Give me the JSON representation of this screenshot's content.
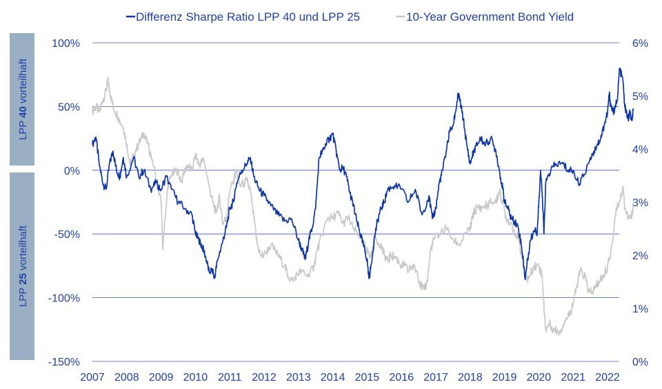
{
  "chart_data": {
    "type": "line",
    "title": "",
    "xlabel": "",
    "legend_placement": "top",
    "grid": true,
    "x_ticks": [
      "2007",
      "2008",
      "2009",
      "2010",
      "2011",
      "2012",
      "2013",
      "2014",
      "2015",
      "2016",
      "2017",
      "2018",
      "2019",
      "2020",
      "2021",
      "2022"
    ],
    "x_range": [
      2007.0,
      2022.75
    ],
    "y_left": {
      "label": "",
      "ticks": [
        "100%",
        "50%",
        "0%",
        "-50%",
        "-100%",
        "-150%"
      ],
      "tick_values": [
        100,
        50,
        0,
        -50,
        -100,
        -150
      ],
      "range": [
        -150,
        100
      ],
      "band_top_label": {
        "prefix": "LPP ",
        "bold": "40",
        "suffix": " vorteilhaft"
      },
      "band_bottom_label": {
        "prefix": "LPP ",
        "bold": "25",
        "suffix": " vorteilhaft"
      },
      "band_color": "#9aafc4"
    },
    "y_right": {
      "label": "",
      "ticks": [
        "6%",
        "5%",
        "4%",
        "3%",
        "2%",
        "1%",
        "0%"
      ],
      "tick_values": [
        6,
        5,
        4,
        3,
        2,
        1,
        0
      ],
      "range": [
        0,
        6
      ]
    },
    "series": [
      {
        "name": "Differenz Sharpe Ratio LPP 40 und LPP 25",
        "axis": "left",
        "color": "#0a34a8",
        "points": [
          [
            2007.0,
            20
          ],
          [
            2007.1,
            26
          ],
          [
            2007.2,
            5
          ],
          [
            2007.3,
            -10
          ],
          [
            2007.4,
            -15
          ],
          [
            2007.5,
            5
          ],
          [
            2007.6,
            15
          ],
          [
            2007.7,
            0
          ],
          [
            2007.8,
            -5
          ],
          [
            2007.9,
            10
          ],
          [
            2008.0,
            -5
          ],
          [
            2008.2,
            10
          ],
          [
            2008.35,
            -5
          ],
          [
            2008.5,
            0
          ],
          [
            2008.7,
            -15
          ],
          [
            2008.85,
            -10
          ],
          [
            2009.0,
            -15
          ],
          [
            2009.15,
            -5
          ],
          [
            2009.3,
            -15
          ],
          [
            2009.5,
            -25
          ],
          [
            2009.7,
            -30
          ],
          [
            2009.9,
            -35
          ],
          [
            2010.0,
            -50
          ],
          [
            2010.1,
            -55
          ],
          [
            2010.2,
            -60
          ],
          [
            2010.3,
            -68
          ],
          [
            2010.4,
            -80
          ],
          [
            2010.5,
            -78
          ],
          [
            2010.55,
            -85
          ],
          [
            2010.65,
            -70
          ],
          [
            2010.8,
            -55
          ],
          [
            2010.9,
            -45
          ],
          [
            2011.0,
            -30
          ],
          [
            2011.1,
            -25
          ],
          [
            2011.2,
            -10
          ],
          [
            2011.35,
            0
          ],
          [
            2011.5,
            5
          ],
          [
            2011.6,
            10
          ],
          [
            2011.7,
            -5
          ],
          [
            2011.85,
            -15
          ],
          [
            2012.0,
            -20
          ],
          [
            2012.2,
            -28
          ],
          [
            2012.4,
            -35
          ],
          [
            2012.6,
            -40
          ],
          [
            2012.8,
            -38
          ],
          [
            2013.0,
            -55
          ],
          [
            2013.1,
            -62
          ],
          [
            2013.2,
            -70
          ],
          [
            2013.3,
            -55
          ],
          [
            2013.4,
            -45
          ],
          [
            2013.5,
            -30
          ],
          [
            2013.6,
            10
          ],
          [
            2013.7,
            15
          ],
          [
            2013.8,
            20
          ],
          [
            2013.9,
            25
          ],
          [
            2014.0,
            28
          ],
          [
            2014.1,
            15
          ],
          [
            2014.2,
            0
          ],
          [
            2014.3,
            2
          ],
          [
            2014.4,
            -5
          ],
          [
            2014.5,
            -18
          ],
          [
            2014.6,
            -28
          ],
          [
            2014.7,
            -40
          ],
          [
            2014.8,
            -50
          ],
          [
            2014.9,
            -60
          ],
          [
            2015.0,
            -70
          ],
          [
            2015.05,
            -85
          ],
          [
            2015.1,
            -78
          ],
          [
            2015.2,
            -55
          ],
          [
            2015.3,
            -40
          ],
          [
            2015.4,
            -30
          ],
          [
            2015.5,
            -25
          ],
          [
            2015.6,
            -15
          ],
          [
            2015.8,
            -12
          ],
          [
            2016.0,
            -15
          ],
          [
            2016.2,
            -25
          ],
          [
            2016.4,
            -15
          ],
          [
            2016.6,
            -35
          ],
          [
            2016.8,
            -20
          ],
          [
            2016.9,
            -38
          ],
          [
            2017.0,
            -30
          ],
          [
            2017.1,
            -10
          ],
          [
            2017.2,
            0
          ],
          [
            2017.3,
            15
          ],
          [
            2017.4,
            30
          ],
          [
            2017.5,
            35
          ],
          [
            2017.6,
            50
          ],
          [
            2017.65,
            60
          ],
          [
            2017.7,
            55
          ],
          [
            2017.8,
            40
          ],
          [
            2017.9,
            20
          ],
          [
            2018.0,
            5
          ],
          [
            2018.1,
            15
          ],
          [
            2018.2,
            20
          ],
          [
            2018.3,
            25
          ],
          [
            2018.45,
            20
          ],
          [
            2018.6,
            25
          ],
          [
            2018.75,
            15
          ],
          [
            2018.85,
            0
          ],
          [
            2018.95,
            -15
          ],
          [
            2019.0,
            -25
          ],
          [
            2019.1,
            -30
          ],
          [
            2019.2,
            -38
          ],
          [
            2019.3,
            -40
          ],
          [
            2019.4,
            -45
          ],
          [
            2019.5,
            -60
          ],
          [
            2019.55,
            -72
          ],
          [
            2019.6,
            -85
          ],
          [
            2019.65,
            -75
          ],
          [
            2019.75,
            -55
          ],
          [
            2019.9,
            -45
          ],
          [
            2019.95,
            -50
          ],
          [
            2020.0,
            -25
          ],
          [
            2020.05,
            0
          ],
          [
            2020.1,
            -20
          ],
          [
            2020.15,
            -50
          ],
          [
            2020.2,
            -10
          ],
          [
            2020.35,
            0
          ],
          [
            2020.5,
            5
          ],
          [
            2020.7,
            5
          ],
          [
            2020.85,
            0
          ],
          [
            2021.0,
            0
          ],
          [
            2021.15,
            -10
          ],
          [
            2021.3,
            -5
          ],
          [
            2021.5,
            10
          ],
          [
            2021.6,
            15
          ],
          [
            2021.7,
            20
          ],
          [
            2021.8,
            25
          ],
          [
            2021.9,
            35
          ],
          [
            2022.0,
            45
          ],
          [
            2022.05,
            60
          ],
          [
            2022.1,
            50
          ],
          [
            2022.2,
            45
          ],
          [
            2022.3,
            60
          ],
          [
            2022.35,
            80
          ],
          [
            2022.45,
            70
          ],
          [
            2022.5,
            50
          ],
          [
            2022.55,
            45
          ],
          [
            2022.6,
            40
          ],
          [
            2022.65,
            45
          ],
          [
            2022.7,
            40
          ],
          [
            2022.75,
            47
          ]
        ]
      },
      {
        "name": "10-Year Government Bond Yield",
        "axis": "right",
        "color": "#c8c8c8",
        "points": [
          [
            2007.0,
            4.7
          ],
          [
            2007.1,
            4.8
          ],
          [
            2007.2,
            4.7
          ],
          [
            2007.3,
            4.9
          ],
          [
            2007.4,
            5.1
          ],
          [
            2007.45,
            5.3
          ],
          [
            2007.5,
            5.1
          ],
          [
            2007.6,
            4.8
          ],
          [
            2007.75,
            4.6
          ],
          [
            2007.9,
            4.4
          ],
          [
            2008.0,
            4.1
          ],
          [
            2008.1,
            3.7
          ],
          [
            2008.2,
            3.9
          ],
          [
            2008.35,
            4.1
          ],
          [
            2008.5,
            4.3
          ],
          [
            2008.6,
            4.1
          ],
          [
            2008.75,
            3.8
          ],
          [
            2008.9,
            3.3
          ],
          [
            2009.0,
            3.0
          ],
          [
            2009.05,
            2.1
          ],
          [
            2009.1,
            2.6
          ],
          [
            2009.2,
            3.3
          ],
          [
            2009.3,
            3.5
          ],
          [
            2009.45,
            3.6
          ],
          [
            2009.6,
            3.4
          ],
          [
            2009.75,
            3.7
          ],
          [
            2009.9,
            3.6
          ],
          [
            2010.0,
            3.9
          ],
          [
            2010.1,
            3.7
          ],
          [
            2010.25,
            3.8
          ],
          [
            2010.4,
            3.3
          ],
          [
            2010.5,
            3.0
          ],
          [
            2010.6,
            2.8
          ],
          [
            2010.7,
            3.1
          ],
          [
            2010.8,
            2.6
          ],
          [
            2010.9,
            2.7
          ],
          [
            2011.0,
            3.2
          ],
          [
            2011.1,
            3.4
          ],
          [
            2011.2,
            3.6
          ],
          [
            2011.3,
            3.3
          ],
          [
            2011.5,
            3.4
          ],
          [
            2011.6,
            3.2
          ],
          [
            2011.7,
            2.7
          ],
          [
            2011.8,
            2.2
          ],
          [
            2011.9,
            2.0
          ],
          [
            2012.0,
            2.0
          ],
          [
            2012.2,
            2.2
          ],
          [
            2012.4,
            2.0
          ],
          [
            2012.6,
            1.8
          ],
          [
            2012.7,
            1.6
          ],
          [
            2012.85,
            1.5
          ],
          [
            2012.95,
            1.65
          ],
          [
            2013.1,
            1.7
          ],
          [
            2013.3,
            1.6
          ],
          [
            2013.45,
            1.8
          ],
          [
            2013.55,
            2.1
          ],
          [
            2013.7,
            2.4
          ],
          [
            2013.85,
            2.7
          ],
          [
            2014.0,
            2.7
          ],
          [
            2014.15,
            2.8
          ],
          [
            2014.3,
            2.6
          ],
          [
            2014.45,
            2.7
          ],
          [
            2014.6,
            2.5
          ],
          [
            2014.75,
            2.4
          ],
          [
            2014.9,
            2.2
          ],
          [
            2015.0,
            2.1
          ],
          [
            2015.1,
            1.95
          ],
          [
            2015.25,
            2.3
          ],
          [
            2015.4,
            2.2
          ],
          [
            2015.5,
            2.0
          ],
          [
            2015.6,
            1.9
          ],
          [
            2015.7,
            2.0
          ],
          [
            2015.85,
            1.95
          ],
          [
            2016.0,
            1.8
          ],
          [
            2016.1,
            1.8
          ],
          [
            2016.2,
            1.7
          ],
          [
            2016.3,
            1.8
          ],
          [
            2016.45,
            1.7
          ],
          [
            2016.55,
            1.45
          ],
          [
            2016.65,
            1.35
          ],
          [
            2016.75,
            1.5
          ],
          [
            2016.85,
            2.1
          ],
          [
            2016.95,
            2.3
          ],
          [
            2017.1,
            2.4
          ],
          [
            2017.3,
            2.5
          ],
          [
            2017.5,
            2.3
          ],
          [
            2017.7,
            2.2
          ],
          [
            2017.85,
            2.4
          ],
          [
            2018.0,
            2.5
          ],
          [
            2018.1,
            2.8
          ],
          [
            2018.2,
            2.9
          ],
          [
            2018.35,
            2.9
          ],
          [
            2018.5,
            2.95
          ],
          [
            2018.6,
            3.0
          ],
          [
            2018.75,
            3.0
          ],
          [
            2018.85,
            3.2
          ],
          [
            2018.95,
            3.0
          ],
          [
            2019.05,
            2.7
          ],
          [
            2019.2,
            2.6
          ],
          [
            2019.4,
            2.3
          ],
          [
            2019.5,
            2.0
          ],
          [
            2019.6,
            1.6
          ],
          [
            2019.7,
            1.55
          ],
          [
            2019.85,
            1.8
          ],
          [
            2020.0,
            1.8
          ],
          [
            2020.1,
            1.6
          ],
          [
            2020.15,
            1.0
          ],
          [
            2020.2,
            0.6
          ],
          [
            2020.3,
            0.7
          ],
          [
            2020.45,
            0.6
          ],
          [
            2020.6,
            0.55
          ],
          [
            2020.75,
            0.75
          ],
          [
            2020.9,
            0.9
          ],
          [
            2021.0,
            1.1
          ],
          [
            2021.1,
            1.4
          ],
          [
            2021.2,
            1.7
          ],
          [
            2021.35,
            1.6
          ],
          [
            2021.45,
            1.3
          ],
          [
            2021.55,
            1.3
          ],
          [
            2021.65,
            1.4
          ],
          [
            2021.75,
            1.5
          ],
          [
            2021.85,
            1.6
          ],
          [
            2021.95,
            1.7
          ],
          [
            2022.05,
            1.9
          ],
          [
            2022.15,
            2.3
          ],
          [
            2022.25,
            2.9
          ],
          [
            2022.35,
            3.0
          ],
          [
            2022.45,
            3.3
          ],
          [
            2022.5,
            2.9
          ],
          [
            2022.6,
            2.7
          ],
          [
            2022.7,
            2.7
          ],
          [
            2022.75,
            3.0
          ]
        ]
      }
    ]
  }
}
